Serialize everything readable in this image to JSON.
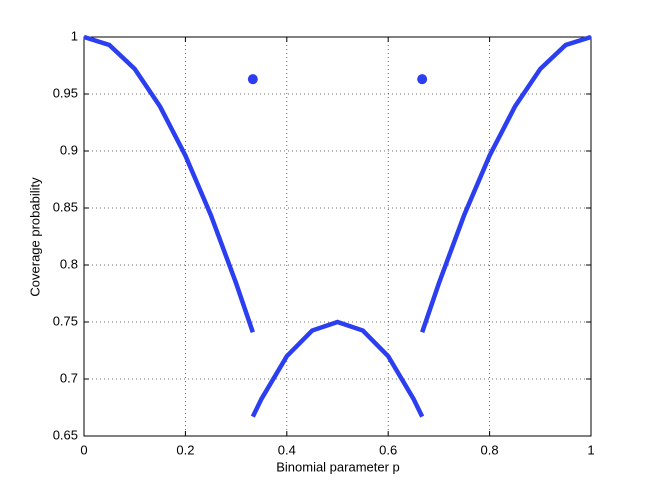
{
  "chart_data": {
    "type": "line",
    "xlabel": "Binomial parameter p",
    "ylabel": "Coverage probability",
    "xlim": [
      0,
      1
    ],
    "xticks": [
      0,
      0.2,
      0.4,
      0.6,
      0.8,
      1
    ],
    "ylim": [
      0.65,
      1
    ],
    "yticks": [
      0.65,
      0.7,
      0.75,
      0.8,
      0.85,
      0.9,
      0.95,
      1
    ],
    "grid": true,
    "series": [
      {
        "color": "#2b3ef0",
        "style": "line",
        "x": [
          0,
          0.05,
          0.1,
          0.15,
          0.2,
          0.25,
          0.3,
          0.333
        ],
        "values": [
          1,
          0.993,
          0.972,
          0.939,
          0.896,
          0.844,
          0.784,
          0.741
        ]
      },
      {
        "color": "#2b3ef0",
        "style": "line",
        "x": [
          0.333,
          0.35,
          0.4,
          0.45,
          0.5,
          0.55,
          0.6,
          0.65,
          0.667
        ],
        "values": [
          0.667,
          0.6825,
          0.72,
          0.7425,
          0.75,
          0.7425,
          0.72,
          0.6825,
          0.667
        ]
      },
      {
        "color": "#2b3ef0",
        "style": "line",
        "x": [
          0.667,
          0.7,
          0.75,
          0.8,
          0.85,
          0.9,
          0.95,
          1
        ],
        "values": [
          0.741,
          0.784,
          0.844,
          0.896,
          0.939,
          0.972,
          0.993,
          1
        ]
      },
      {
        "color": "#2b3ef0",
        "style": "dot",
        "x": [
          0.333,
          0.667
        ],
        "values": [
          0.963,
          0.963
        ]
      }
    ]
  }
}
